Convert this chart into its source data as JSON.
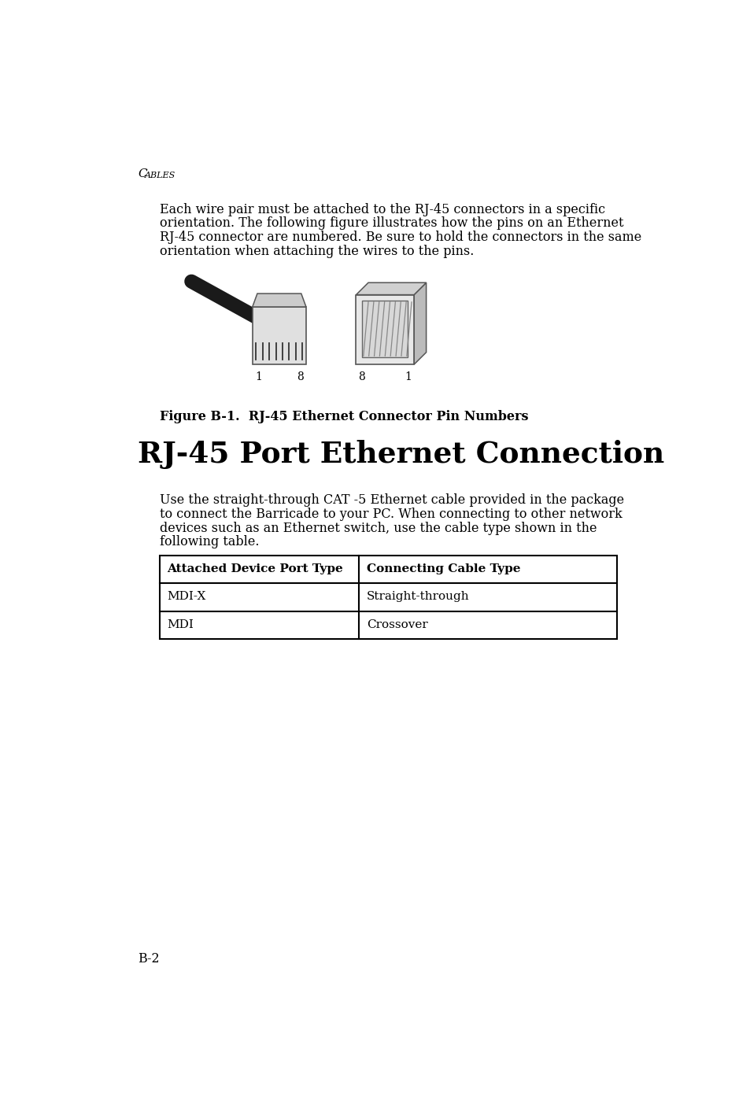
{
  "background_color": "#ffffff",
  "section_label_C": "C",
  "section_label_rest": "ABLES",
  "para1_lines": [
    "Each wire pair must be attached to the RJ-45 connectors in a specific",
    "orientation. The following figure illustrates how the pins on an Ethernet",
    "RJ-45 connector are numbered. Be sure to hold the connectors in the same",
    "orientation when attaching the wires to the pins."
  ],
  "figure_caption": "Figure B-1.  RJ-45 Ethernet Connector Pin Numbers",
  "section_title": "RJ-45 Port Ethernet Connection",
  "para2_lines": [
    "Use the straight-through CAT -5 Ethernet cable provided in the package",
    "to connect the Barricade to your PC. When connecting to other network",
    "devices such as an Ethernet switch, use the cable type shown in the",
    "following table."
  ],
  "table_headers": [
    "Attached Device Port Type",
    "Connecting Cable Type"
  ],
  "table_rows": [
    [
      "MDI-X",
      "Straight-through"
    ],
    [
      "MDI",
      "Crossover"
    ]
  ],
  "footer_text": "B-2",
  "text_color": "#000000",
  "table_border_color": "#000000",
  "font_family": "serif"
}
